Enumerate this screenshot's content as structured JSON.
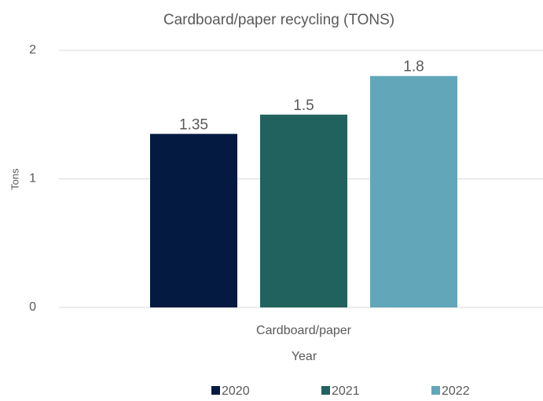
{
  "chart_data": {
    "type": "bar",
    "title": "Cardboard/paper recycling (TONS)",
    "categories": [
      "Cardboard/paper"
    ],
    "series": [
      {
        "name": "2020",
        "color": "#041a40",
        "values": [
          1.35
        ]
      },
      {
        "name": "2021",
        "color": "#22625e",
        "values": [
          1.5
        ]
      },
      {
        "name": "2022",
        "color": "#62a6b9",
        "values": [
          1.8
        ]
      }
    ],
    "ylim": [
      0,
      2
    ],
    "yticks": [
      0,
      1,
      2
    ],
    "grid": true,
    "y_label": "Tons",
    "x_label": "Year",
    "legend": "bottom"
  }
}
